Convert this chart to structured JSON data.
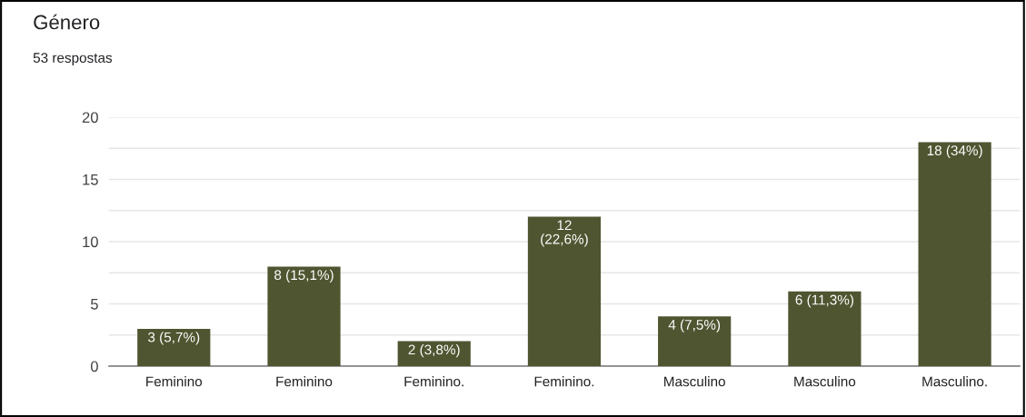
{
  "chart_data": {
    "type": "bar",
    "title": "Género",
    "subtitle": "53 respostas",
    "categories": [
      "Feminino",
      "Feminino",
      "Feminino.",
      "Feminino.",
      "Masculino",
      "Masculino",
      "Masculino."
    ],
    "values": [
      3,
      8,
      2,
      12,
      4,
      6,
      18
    ],
    "color": "#4f5530",
    "value_labels": [
      "3 (5,7%)",
      "8 (15,1%)",
      "2 (3,8%)",
      "12\n(22,6%)",
      "4 (7,5%)",
      "6 (11,3%)",
      "18 (34%)"
    ],
    "ylim": [
      0,
      20
    ],
    "yticks": [
      0,
      {
        "value": 2.5,
        "label": null
      },
      5,
      {
        "value": 7.5,
        "label": null
      },
      10,
      {
        "value": 12.5,
        "label": null
      },
      15,
      {
        "value": 17.5,
        "label": null
      },
      20
    ],
    "grid": "y",
    "legend": false
  }
}
